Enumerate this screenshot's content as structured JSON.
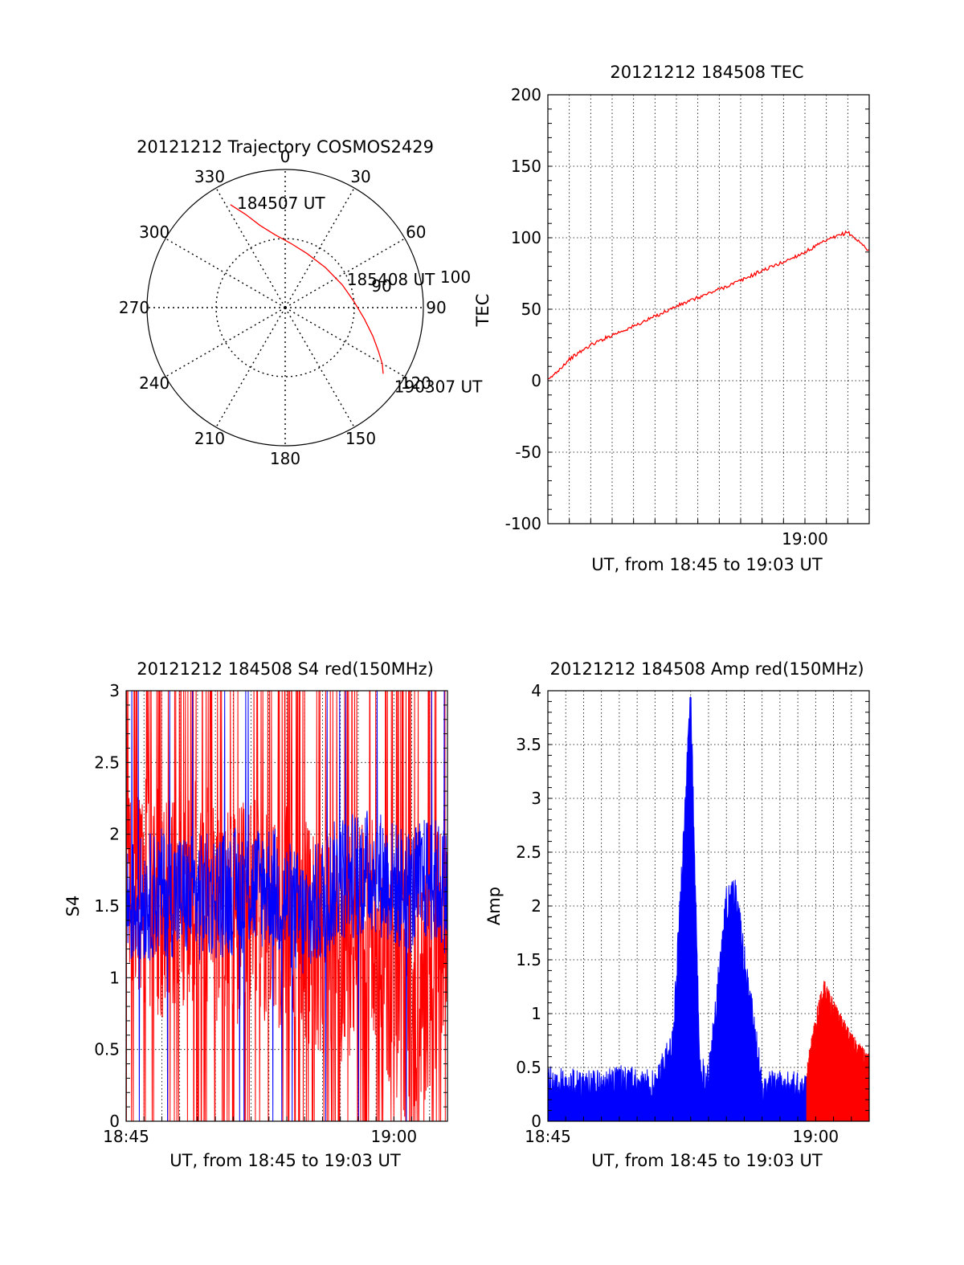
{
  "chart_data": [
    {
      "id": "trajectory",
      "type": "polar",
      "title": "20121212 Trajectory COSMOS2429",
      "azimuth_labels": [
        "0",
        "30",
        "60",
        "90",
        "120",
        "150",
        "180",
        "210",
        "240",
        "270",
        "300",
        "330"
      ],
      "radius_labels": [
        "90",
        "100"
      ],
      "rmax": 90,
      "grid_rings": [
        45
      ],
      "track_color": "#ff0000",
      "track": [
        {
          "az": 332,
          "el_offset": 76
        },
        {
          "az": 337,
          "el_offset": 66
        },
        {
          "az": 343,
          "el_offset": 56
        },
        {
          "az": 352,
          "el_offset": 48
        },
        {
          "az": 5,
          "el_offset": 42
        },
        {
          "az": 22,
          "el_offset": 38
        },
        {
          "az": 45,
          "el_offset": 37
        },
        {
          "az": 68,
          "el_offset": 40
        },
        {
          "az": 85,
          "el_offset": 45
        },
        {
          "az": 98,
          "el_offset": 52
        },
        {
          "az": 108,
          "el_offset": 60
        },
        {
          "az": 115,
          "el_offset": 67
        },
        {
          "az": 120,
          "el_offset": 73
        },
        {
          "az": 124,
          "el_offset": 77
        }
      ],
      "annotations": [
        {
          "text": "184507 UT",
          "az": 339,
          "el_offset": 73
        },
        {
          "text": "185408 UT",
          "az": 68,
          "el_offset": 49
        },
        {
          "text": "190307 UT",
          "az": 124,
          "el_offset": 92
        }
      ]
    },
    {
      "id": "tec",
      "type": "line",
      "title": "20121212 184508 TEC",
      "xlabel": "UT, from 18:45 to 19:03 UT",
      "ylabel": "TEC",
      "xlim": [
        "18:48",
        "19:03"
      ],
      "ylim": [
        -100,
        200
      ],
      "yticks": [
        -100,
        -50,
        0,
        50,
        100,
        150,
        200
      ],
      "xticks": [
        {
          "t": "19:00",
          "label": "19:00"
        }
      ],
      "grid": true,
      "series": [
        {
          "color": "#ff0000",
          "x": [
            "18:48",
            "18:49",
            "18:50",
            "18:51",
            "18:52",
            "18:53",
            "18:54",
            "18:55",
            "18:56",
            "18:57",
            "18:58",
            "18:59",
            "19:00",
            "19:01",
            "19:02",
            "19:03"
          ],
          "y": [
            0,
            15,
            25,
            32,
            38,
            45,
            52,
            58,
            64,
            70,
            77,
            83,
            90,
            98,
            104,
            91
          ]
        }
      ]
    },
    {
      "id": "s4",
      "type": "line",
      "title": "20121212 184508 S4 red(150MHz)",
      "xlabel": "UT, from 18:45 to 19:03 UT",
      "ylabel": "S4",
      "xlim": [
        "18:45",
        "19:03"
      ],
      "ylim": [
        0,
        3
      ],
      "yticks": [
        0,
        0.5,
        1,
        1.5,
        2,
        2.5,
        3
      ],
      "xticks": [
        {
          "t": "18:45",
          "label": "18:45"
        },
        {
          "t": "19:00",
          "label": "19:00"
        }
      ],
      "grid": true,
      "series": [
        {
          "color": "#ff0000",
          "x": [
            "18:45",
            "18:47",
            "18:49",
            "18:51",
            "18:53",
            "18:55",
            "18:57",
            "18:59",
            "19:00",
            "19:01",
            "19:02",
            "19:03"
          ],
          "y": [
            1.7,
            1.5,
            1.6,
            1.4,
            1.5,
            1.3,
            1.2,
            1.4,
            0.9,
            0.75,
            1.0,
            1.5
          ]
        },
        {
          "color": "#0000ff",
          "x": [
            "18:45",
            "18:47",
            "18:49",
            "18:51",
            "18:53",
            "18:55",
            "18:57",
            "18:59",
            "19:00",
            "19:01",
            "19:02",
            "19:03"
          ],
          "y": [
            1.5,
            1.6,
            1.55,
            1.6,
            1.65,
            1.4,
            1.7,
            1.75,
            1.65,
            1.6,
            1.7,
            1.6
          ]
        }
      ]
    },
    {
      "id": "amp",
      "type": "line",
      "title": "20121212 184508 Amp red(150MHz)",
      "xlabel": "UT, from 18:45 to 19:03 UT",
      "ylabel": "Amp",
      "xlim": [
        "18:45",
        "19:03"
      ],
      "ylim": [
        0,
        4
      ],
      "yticks": [
        0,
        0.5,
        1,
        1.5,
        2,
        2.5,
        3,
        3.5,
        4
      ],
      "xticks": [
        {
          "t": "18:45",
          "label": "18:45"
        },
        {
          "t": "19:00",
          "label": "19:00"
        }
      ],
      "grid": true,
      "series": [
        {
          "color": "#0000ff",
          "x": [
            "18:45",
            "18:47",
            "18:49",
            "18:51",
            "18:52",
            "18:53",
            "18:53.5",
            "18:54",
            "18:55",
            "18:55.5",
            "18:57",
            "18:59",
            "19:01",
            "19:03"
          ],
          "y": [
            0.35,
            0.3,
            0.35,
            0.3,
            0.7,
            3.9,
            0.5,
            0.4,
            2.0,
            2.1,
            0.3,
            0.3,
            0.3,
            0.35
          ]
        },
        {
          "color": "#ff0000",
          "x": [
            "18:59.5",
            "19:00",
            "19:00.5",
            "19:01",
            "19:01.5",
            "19:02",
            "19:02.5",
            "19:03"
          ],
          "y": [
            0.3,
            0.8,
            1.1,
            0.9,
            0.75,
            0.6,
            0.5,
            0.4
          ]
        }
      ]
    }
  ]
}
